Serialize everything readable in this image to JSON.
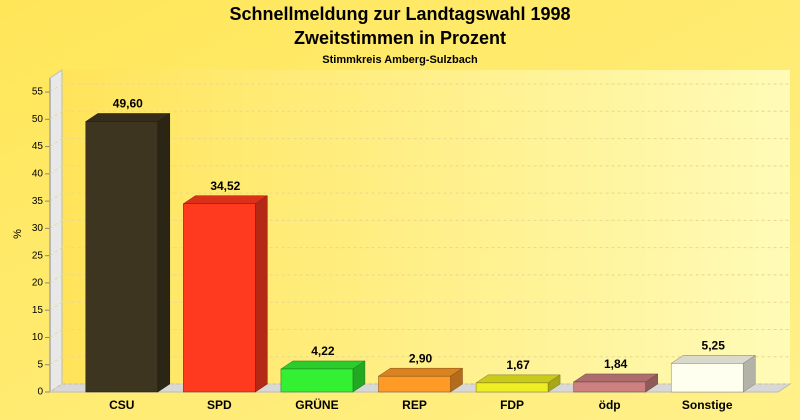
{
  "chart_data": {
    "type": "bar3d",
    "title": [
      "Schnellmeldung zur Landtagswahl 1998",
      "Zweitstimmen in Prozent"
    ],
    "subtitle": "Stimmkreis Amberg-Sulzbach",
    "y_label": "%",
    "categories": [
      "CSU",
      "SPD",
      "GRÜNE",
      "REP",
      "FDP",
      "ödp",
      "Sonstige"
    ],
    "values": [
      49.6,
      34.52,
      4.22,
      2.9,
      1.67,
      1.84,
      5.25
    ],
    "value_labels": [
      "49,60",
      "34,52",
      "4,22",
      "2,90",
      "1,67",
      "1,84",
      "5,25"
    ],
    "colors": [
      "#3d3520",
      "#ff3a1f",
      "#33f033",
      "#ff9a26",
      "#eeee22",
      "#cc8080",
      "#fffff0"
    ],
    "ylim": [
      0,
      57.5
    ],
    "yticks": [
      0,
      5,
      10,
      15,
      20,
      25,
      30,
      35,
      40,
      45,
      50,
      55
    ],
    "grid": true
  }
}
